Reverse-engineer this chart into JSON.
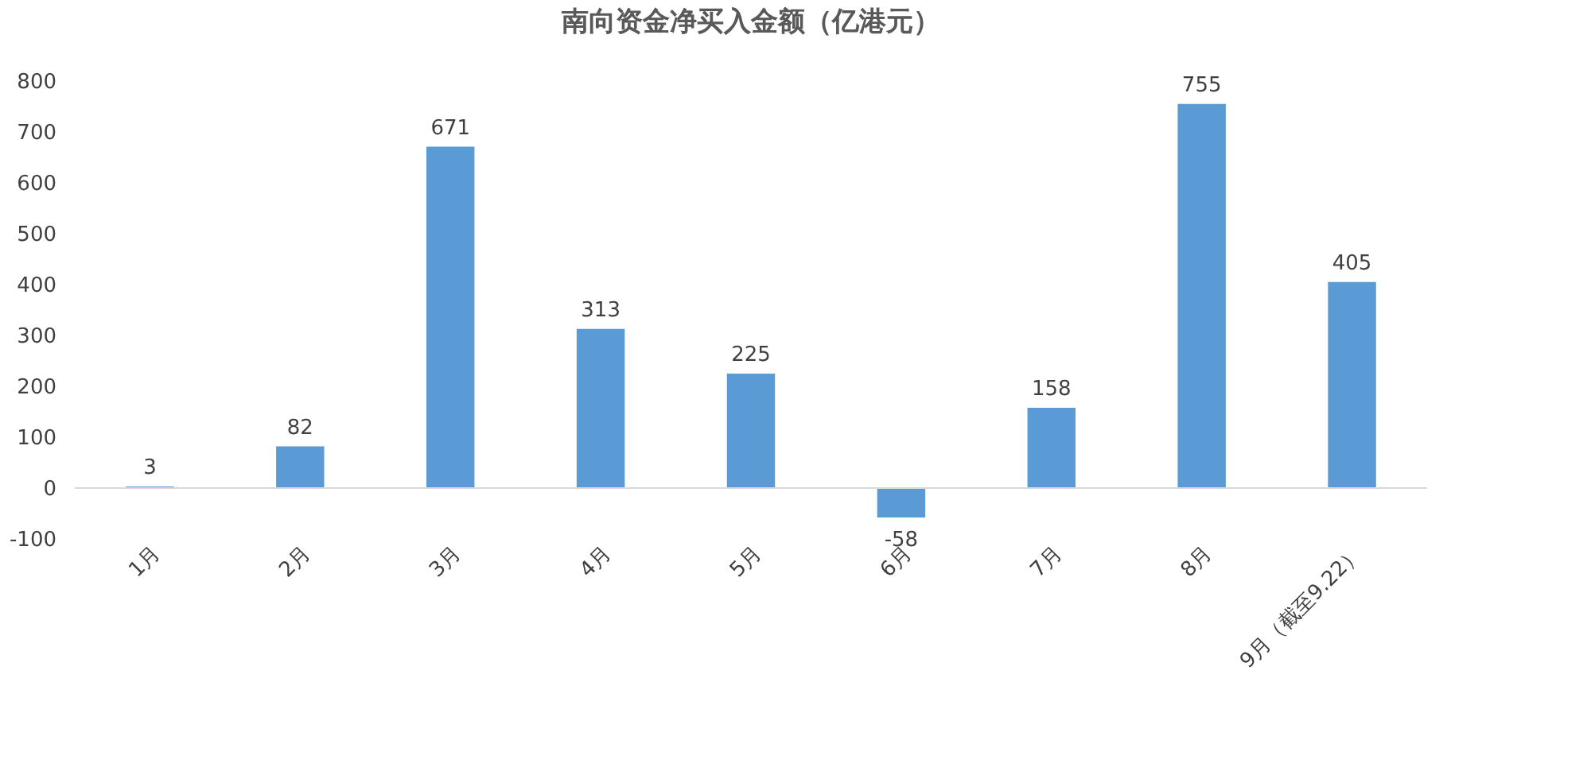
{
  "chart_data": {
    "type": "bar",
    "title": "南向资金净买入金额（亿港元）",
    "categories": [
      "1月",
      "2月",
      "3月",
      "4月",
      "5月",
      "6月",
      "7月",
      "8月",
      "9月（截至9.22）"
    ],
    "values": [
      3,
      82,
      671,
      313,
      225,
      -58,
      158,
      755,
      405
    ],
    "color": "#5b9bd5",
    "ylim": [
      -100,
      800
    ],
    "yticks": [
      -100,
      0,
      100,
      200,
      300,
      400,
      500,
      600,
      700,
      800
    ],
    "grid": false,
    "data_labels": true
  }
}
